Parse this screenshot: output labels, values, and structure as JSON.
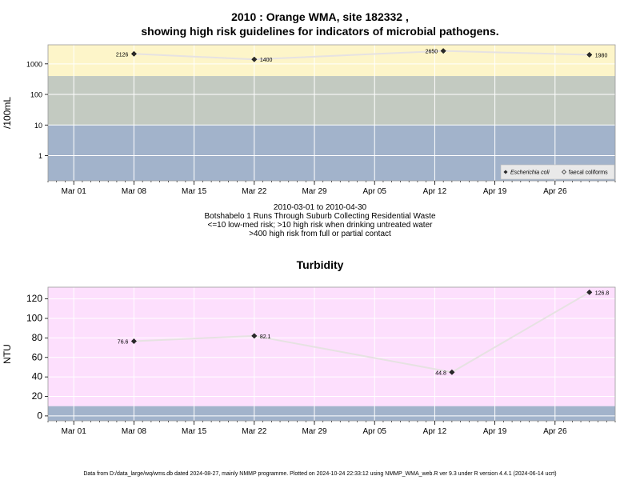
{
  "titles": {
    "main_line1": "2010 : Orange WMA, site 182332 ,",
    "main_line2": "showing high risk guidelines for indicators of microbial pathogens.",
    "turbidity": "Turbidity"
  },
  "captions": [
    "2010-03-01 to 2010-04-30",
    "Botshabelo 1 Runs Through Suburb Collecting Residential Waste",
    "<=10 low-med risk; >10 high risk when drinking untreated water",
    ">400 high risk from full or partial contact"
  ],
  "footer": "Data from D:/data_large/wq/wms.db dated 2024-08-27, mainly NMMP programme. Plotted on 2024-10-24 22:33:12 using NMMP_WMA_web.R ver 9.3 under R version 4.4.1 (2024-06-14 ucrt)",
  "colors": {
    "high_contact_band": "#fdf5c9",
    "drinking_band": "#c3cac1",
    "low_band": "#a2b3cb",
    "turbidity_bg": "#fddffd",
    "turbidity_low_band": "#a2b3cb",
    "line": "#e6e2e2",
    "marker": "#2a2a2a"
  },
  "chart_data": [
    {
      "type": "line",
      "ylabel": "/100mL",
      "yscale": "log",
      "xlim": [
        "2010-02-26",
        "2010-05-03"
      ],
      "ylim": [
        0.15,
        4200
      ],
      "x_ticks": [
        "Mar 01",
        "Mar 08",
        "Mar 15",
        "Mar 22",
        "Mar 29",
        "Apr 05",
        "Apr 12",
        "Apr 19",
        "Apr 26"
      ],
      "x_tick_dates": [
        "2010-03-01",
        "2010-03-08",
        "2010-03-15",
        "2010-03-22",
        "2010-03-29",
        "2010-04-05",
        "2010-04-12",
        "2010-04-19",
        "2010-04-26"
      ],
      "y_ticks": [
        {
          "label": "1",
          "value": 1
        },
        {
          "label": "10",
          "value": 10
        },
        {
          "label": "100",
          "value": 100
        },
        {
          "label": "1000",
          "value": 1000
        }
      ],
      "bands": [
        {
          "from": 400,
          "to": 4200,
          "color": "#fdf5c9"
        },
        {
          "from": 10,
          "to": 400,
          "color": "#c3cac1"
        },
        {
          "from": 0.15,
          "to": 10,
          "color": "#a2b3cb"
        }
      ],
      "grid": true,
      "series": [
        {
          "name": "Escherichia coli",
          "x": [
            "2010-03-08",
            "2010-03-22",
            "2010-04-13",
            "2010-04-30"
          ],
          "y": [
            2126,
            1400,
            2650,
            1980
          ],
          "labels": [
            "2126",
            "1400",
            "2650",
            "1980"
          ],
          "label_side": [
            "left",
            "right",
            "left",
            "right"
          ]
        }
      ],
      "legend": {
        "position": "bottom-right",
        "entries": [
          {
            "label": "Escherichia coli",
            "italic": true,
            "marker": "filled-diamond"
          },
          {
            "label": "faecal coliforms",
            "italic": false,
            "marker": "open-diamond"
          }
        ]
      }
    },
    {
      "type": "line",
      "title": "Turbidity",
      "ylabel": "NTU",
      "yscale": "linear",
      "xlim": [
        "2010-02-26",
        "2010-05-03"
      ],
      "ylim": [
        -5,
        132
      ],
      "x_ticks": [
        "Mar 01",
        "Mar 08",
        "Mar 15",
        "Mar 22",
        "Mar 29",
        "Apr 05",
        "Apr 12",
        "Apr 19",
        "Apr 26"
      ],
      "x_tick_dates": [
        "2010-03-01",
        "2010-03-08",
        "2010-03-15",
        "2010-03-22",
        "2010-03-29",
        "2010-04-05",
        "2010-04-12",
        "2010-04-19",
        "2010-04-26"
      ],
      "y_ticks": [
        {
          "label": "0",
          "value": 0
        },
        {
          "label": "20",
          "value": 20
        },
        {
          "label": "40",
          "value": 40
        },
        {
          "label": "60",
          "value": 60
        },
        {
          "label": "80",
          "value": 80
        },
        {
          "label": "100",
          "value": 100
        },
        {
          "label": "120",
          "value": 120
        }
      ],
      "bands": [
        {
          "from": 10,
          "to": 132,
          "color": "#fddffd"
        },
        {
          "from": -5,
          "to": 10,
          "color": "#a2b3cb"
        }
      ],
      "grid": true,
      "series": [
        {
          "name": "",
          "x": [
            "2010-03-08",
            "2010-03-22",
            "2010-04-14",
            "2010-04-30"
          ],
          "y": [
            76.6,
            82.1,
            44.8,
            126.8
          ],
          "labels": [
            "76.6",
            "82.1",
            "44.8",
            "126.8"
          ],
          "label_side": [
            "left",
            "right",
            "left",
            "right"
          ]
        }
      ]
    }
  ]
}
